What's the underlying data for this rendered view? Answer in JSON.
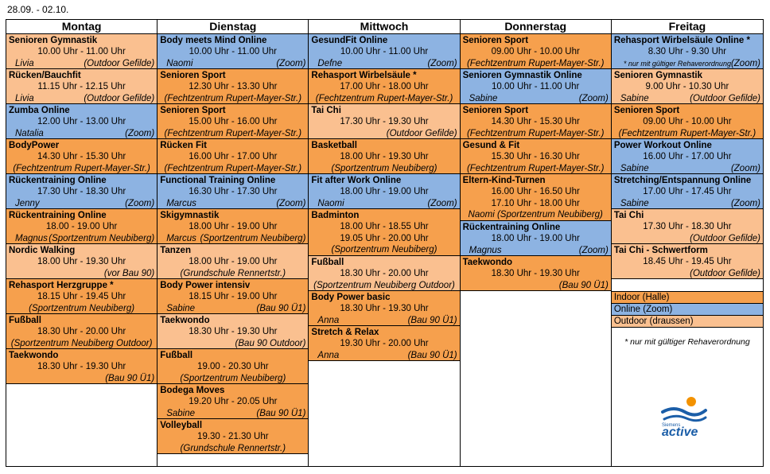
{
  "date_range": "28.09. - 02.10.",
  "colors": {
    "indoor": "#f6a04d",
    "online": "#8db3e2",
    "outdoor": "#fac090"
  },
  "days": [
    {
      "name": "Montag",
      "events": [
        {
          "title": "Senioren Gymnastik",
          "time": "10.00 Uhr - 11.00 Uhr",
          "who": "Livia",
          "place": "(Outdoor Gefilde)",
          "type": "outdoor"
        },
        {
          "title": "Rücken/Bauchfit",
          "time": "11.15 Uhr - 12.15 Uhr",
          "who": "Livia",
          "place": "(Outdoor Gefilde)",
          "type": "outdoor"
        },
        {
          "title": "Zumba Online",
          "time": "12.00 Uhr - 13.00 Uhr",
          "who": "Natalia",
          "place": "(Zoom)",
          "type": "online"
        },
        {
          "title": "BodyPower",
          "time": "14.30 Uhr - 15.30 Uhr",
          "who": "",
          "place": "(Fechtzentrum Rupert-Mayer-Str.)",
          "type": "indoor"
        },
        {
          "title": "Rückentraining Online",
          "time": "17.30 Uhr - 18.30 Uhr",
          "who": "Jenny",
          "place": "(Zoom)",
          "type": "online"
        },
        {
          "title": "Rückentraining Online",
          "time": "18.00 - 19.00 Uhr",
          "who": "Magnus",
          "place": "(Sportzentrum Neubiberg)",
          "type": "indoor"
        },
        {
          "title": "Nordic Walking",
          "time": "18.00 Uhr - 19.30 Uhr",
          "who": "",
          "place": "(vor Bau 90)",
          "type": "outdoor"
        },
        {
          "title": "Rehasport Herzgruppe *",
          "time": "18.15 Uhr - 19.45 Uhr",
          "who": "",
          "place": "(Sportzentrum Neubiberg)",
          "type": "indoor"
        },
        {
          "title": "Fußball",
          "time": "18.30 Uhr - 20.00 Uhr",
          "who": "",
          "place": "(Sportzentrum Neubiberg Outdoor)",
          "type": "indoor"
        },
        {
          "title": "Taekwondo",
          "time": "18.30 Uhr - 19.30 Uhr",
          "who": "",
          "place": "(Bau 90 Ü1)",
          "type": "indoor"
        }
      ]
    },
    {
      "name": "Dienstag",
      "events": [
        {
          "title": "Body meets Mind Online",
          "time": "10.00 Uhr - 11.00 Uhr",
          "who": "Naomi",
          "place": "(Zoom)",
          "type": "online"
        },
        {
          "title": "Senioren Sport",
          "time": "12.30 Uhr - 13.30 Uhr",
          "who": "",
          "place": "(Fechtzentrum Rupert-Mayer-Str.)",
          "type": "indoor"
        },
        {
          "title": "Senioren Sport",
          "time": "15.00 Uhr - 16.00 Uhr",
          "who": "",
          "place": "(Fechtzentrum Rupert-Mayer-Str.)",
          "type": "indoor"
        },
        {
          "title": "Rücken Fit",
          "time": "16.00 Uhr - 17.00 Uhr",
          "who": "",
          "place": "(Fechtzentrum Rupert-Mayer-Str.)",
          "type": "indoor"
        },
        {
          "title": "Functional Training Online",
          "time": "16.30 Uhr - 17.30 Uhr",
          "who": "Marcus",
          "place": "(Zoom)",
          "type": "online"
        },
        {
          "title": "Skigymnastik",
          "time": "18.00 Uhr - 19.00 Uhr",
          "who": "Marcus",
          "place": "(Sportzentrum Neubiberg)",
          "type": "indoor"
        },
        {
          "title": "Tanzen",
          "time": "18.00 Uhr - 19.00 Uhr",
          "who": "",
          "place": "(Grundschule Rennertstr.)",
          "type": "outdoor"
        },
        {
          "title": "Body Power intensiv",
          "time": "18.15 Uhr - 19.00 Uhr",
          "who": "Sabine",
          "place": "(Bau 90 Ü1)",
          "type": "indoor"
        },
        {
          "title": "Taekwondo",
          "time": "18.30 Uhr - 19.30 Uhr",
          "who": "",
          "place": "(Bau 90 Outdoor)",
          "type": "outdoor"
        },
        {
          "title": "Fußball",
          "time": "19.00 - 20.30 Uhr",
          "who": "",
          "place": "(Sportzentrum Neubiberg)",
          "type": "indoor"
        },
        {
          "title": "Bodega Moves",
          "time": "19.20 Uhr - 20.05 Uhr",
          "who": "Sabine",
          "place": "(Bau 90 Ü1)",
          "type": "indoor"
        },
        {
          "title": "Volleyball",
          "time": "19.30 - 21.30 Uhr",
          "who": "",
          "place": "(Grundschule Rennertstr.)",
          "type": "indoor"
        }
      ]
    },
    {
      "name": "Mittwoch",
      "events": [
        {
          "title": "GesundFit Online",
          "time": "10.00 Uhr - 11.00 Uhr",
          "who": "Defne",
          "place": "(Zoom)",
          "type": "online"
        },
        {
          "title": "Rehasport Wirbelsäule *",
          "time": "17.00 Uhr - 18.00 Uhr",
          "who": "",
          "place": "(Fechtzentrum Rupert-Mayer-Str.)",
          "type": "indoor"
        },
        {
          "title": "Tai Chi",
          "time": "17.30 Uhr - 19.30 Uhr",
          "who": "",
          "place": "(Outdoor Gefilde)",
          "type": "outdoor"
        },
        {
          "title": "Basketball",
          "time": "18.00 Uhr - 19.30 Uhr",
          "who": "",
          "place": "(Sportzentrum Neubiberg)",
          "type": "indoor"
        },
        {
          "title": "Fit after Work Online",
          "time": "18.00 Uhr - 19.00 Uhr",
          "who": "Naomi",
          "place": "(Zoom)",
          "type": "online"
        },
        {
          "title": "Badminton",
          "time": "18.00 Uhr - 18.55 Uhr",
          "time2": "19.05 Uhr - 20.00 Uhr",
          "who": "",
          "place": "(Sportzentrum Neubiberg)",
          "type": "indoor",
          "tall": true
        },
        {
          "title": "Fußball",
          "time": "18.30 Uhr - 20.00 Uhr",
          "who": "",
          "place": "(Sportzentrum Neubiberg Outdoor)",
          "type": "outdoor"
        },
        {
          "title": "Body Power basic",
          "time": "18.30 Uhr - 19.30 Uhr",
          "who": "Anna",
          "place": "(Bau 90 Ü1)",
          "type": "indoor"
        },
        {
          "title": "Stretch & Relax",
          "time": "19.30 Uhr - 20.00 Uhr",
          "who": "Anna",
          "place": "(Bau 90 Ü1)",
          "type": "indoor"
        }
      ]
    },
    {
      "name": "Donnerstag",
      "events": [
        {
          "title": "Senioren Sport",
          "time": "09.00 Uhr - 10.00 Uhr",
          "who": "",
          "place": "(Fechtzentrum Rupert-Mayer-Str.)",
          "type": "indoor"
        },
        {
          "title": "Senioren Gymnastik Online",
          "time": "10.00 Uhr - 11.00 Uhr",
          "who": "Sabine",
          "place": "(Zoom)",
          "type": "online"
        },
        {
          "title": "Senioren Sport",
          "time": "14.30 Uhr - 15.30 Uhr",
          "who": "",
          "place": "(Fechtzentrum Rupert-Mayer-Str.)",
          "type": "indoor"
        },
        {
          "title": "Gesund & Fit",
          "time": "15.30 Uhr - 16.30 Uhr",
          "who": "",
          "place": "(Fechtzentrum Rupert-Mayer-Str.)",
          "type": "indoor"
        },
        {
          "title": "Eltern-Kind-Turnen",
          "time": "16.00 Uhr - 16.50 Uhr",
          "time2": "17.10 Uhr - 18.00 Uhr",
          "who": "",
          "place": "Naomi  (Sportzentrum Neubiberg)",
          "type": "indoor",
          "tall": true
        },
        {
          "title": "Rückentraining Online",
          "time": "18.00 Uhr - 19.00 Uhr",
          "who": "Magnus",
          "place": "(Zoom)",
          "type": "online"
        },
        {
          "title": "Taekwondo",
          "time": "18.30 Uhr - 19.30 Uhr",
          "who": "",
          "place": "(Bau 90 Ü1)",
          "type": "indoor"
        }
      ]
    },
    {
      "name": "Freitag",
      "events": [
        {
          "title": "Rehasport Wirbelsäule Online *",
          "time": "8.30 Uhr - 9.30 Uhr",
          "who": "",
          "place": "(Zoom)",
          "note": "* nur mit gültiger Rehaverordnung",
          "type": "online"
        },
        {
          "title": "Senioren Gymnastik",
          "time": "9.00 Uhr - 10.30 Uhr",
          "who": "Sabine",
          "place": "(Outdoor Gefilde)",
          "type": "outdoor"
        },
        {
          "title": "Senioren Sport",
          "time": "09.00 Uhr - 10.00 Uhr",
          "who": "",
          "place": "(Fechtzentrum Rupert-Mayer-Str.)",
          "type": "indoor"
        },
        {
          "title": "Power Workout Online",
          "time": "16.00 Uhr - 17.00 Uhr",
          "who": "Sabine",
          "place": "(Zoom)",
          "type": "online"
        },
        {
          "title": "Stretching/Entspannung Online",
          "time": "17.00 Uhr - 17.45 Uhr",
          "who": "Sabine",
          "place": "(Zoom)",
          "type": "online"
        },
        {
          "title": "Tai Chi",
          "time": "17.30 Uhr - 18.30 Uhr",
          "who": "",
          "place": "(Outdoor Gefilde)",
          "type": "outdoor"
        },
        {
          "title": "Tai Chi - Schwertform",
          "time": "18.45 Uhr - 19.45 Uhr",
          "who": "",
          "place": "(Outdoor Gefilde)",
          "type": "outdoor"
        }
      ]
    }
  ],
  "legend": {
    "indoor": "Indoor (Halle)",
    "online": "Online (Zoom)",
    "outdoor": "Outdoor (draussen)"
  },
  "reha_note": "* nur mit gültiger Rehaverordnung",
  "logo": {
    "brand": "Siemens",
    "name": "active",
    "icon": "swimmer-logo-icon"
  }
}
